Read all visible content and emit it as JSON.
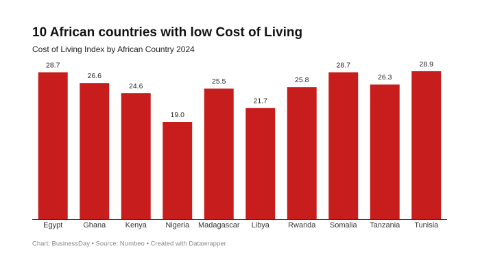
{
  "chart_data": {
    "type": "bar",
    "title": "10 African countries with low Cost of Living",
    "subtitle": "Cost of Living Index by African Country 2024",
    "categories": [
      "Egypt",
      "Ghana",
      "Kenya",
      "Nigeria",
      "Madagascar",
      "Libya",
      "Rwanda",
      "Somalia",
      "Tanzania",
      "Tunisia"
    ],
    "values": [
      28.7,
      26.6,
      24.6,
      19.0,
      25.5,
      21.7,
      25.8,
      28.7,
      26.3,
      28.9
    ],
    "value_labels": [
      "28.7",
      "26.6",
      "24.6",
      "19.0",
      "25.5",
      "21.7",
      "25.8",
      "28.7",
      "26.3",
      "28.9"
    ],
    "color": "#c71e1d",
    "footer": "Chart: BusinessDay • Source: Numbeo • Created with Datawrapper"
  }
}
